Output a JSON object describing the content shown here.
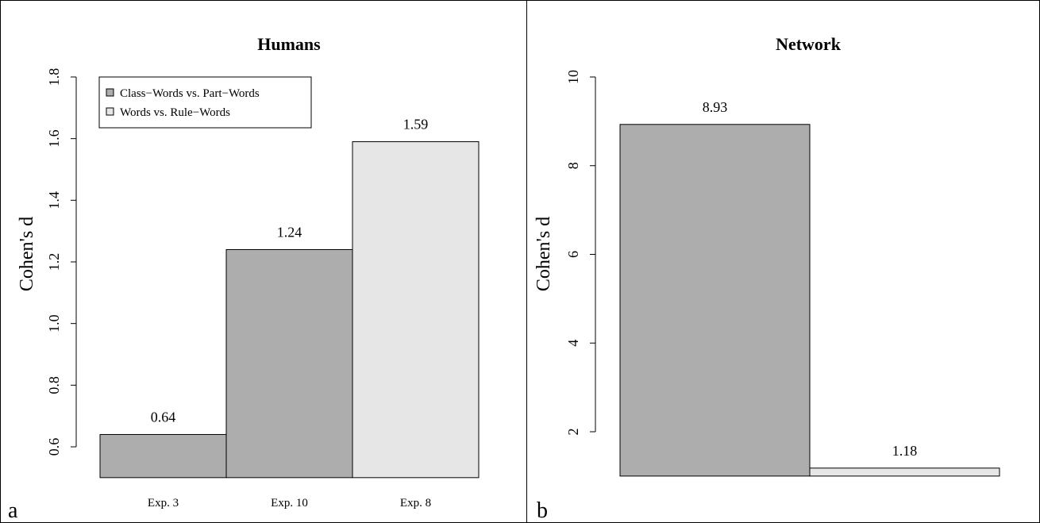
{
  "chart_data": [
    {
      "type": "bar",
      "panel_label": "a",
      "title": "Humans",
      "ylabel": "Cohen's d",
      "xlabel": "",
      "ylim": [
        0.5,
        1.8
      ],
      "yticks": [
        "0.6",
        "0.8",
        "1.0",
        "1.2",
        "1.4",
        "1.6",
        "1.8"
      ],
      "categories": [
        "Exp. 3",
        "Exp. 10",
        "Exp. 8"
      ],
      "values": [
        0.64,
        1.24,
        1.59
      ],
      "value_labels": [
        "0.64",
        "1.24",
        "1.59"
      ],
      "bar_groups": [
        0,
        0,
        1
      ],
      "legend": {
        "placement": "top-left",
        "entries": [
          {
            "label": "Class−Words vs. Part−Words",
            "color": "#adadad"
          },
          {
            "label": "Words vs. Rule−Words",
            "color": "#e6e6e6"
          }
        ]
      },
      "grid": false
    },
    {
      "type": "bar",
      "panel_label": "b",
      "title": "Network",
      "ylabel": "Cohen's d",
      "xlabel": "",
      "ylim": [
        1.0,
        10.0
      ],
      "yticks": [
        "2",
        "4",
        "6",
        "8",
        "10"
      ],
      "categories": [
        "",
        ""
      ],
      "values": [
        8.93,
        1.18
      ],
      "value_labels": [
        "8.93",
        "1.18"
      ],
      "bar_groups": [
        0,
        1
      ],
      "grid": false
    }
  ],
  "colors": {
    "group0": "#adadad",
    "group1": "#e6e6e6",
    "border": "#000000"
  }
}
